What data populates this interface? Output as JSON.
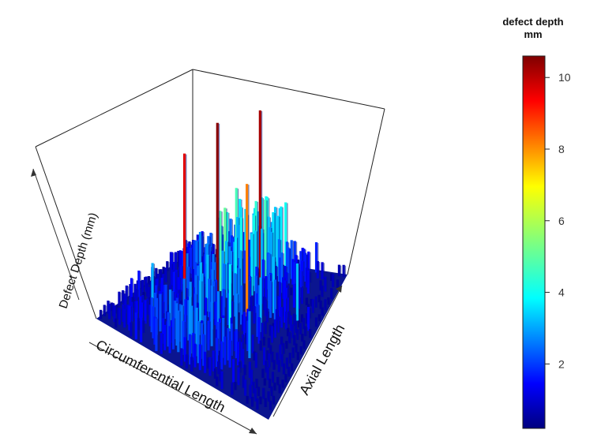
{
  "chart_data": {
    "type": "heatmap",
    "style": "3d-bars",
    "xlabel": "Circumferential Length",
    "ylabel": "Axial Length",
    "zlabel": "Defect Depth (mm)",
    "colorbar": {
      "title_line1": "defect depth",
      "title_line2": "mm",
      "range": [
        0.2,
        10.6
      ],
      "ticks": [
        2,
        4,
        6,
        8,
        10
      ],
      "colormap": "jet",
      "placement": "right"
    },
    "grid": false,
    "z_range": [
      0,
      10.6
    ],
    "notable_points": [
      {
        "label": "peak",
        "depth": 10.5
      },
      {
        "label": "peak",
        "depth": 10.2
      },
      {
        "label": "peak",
        "depth": 9.6
      },
      {
        "label": "peak",
        "depth": 8.0
      }
    ]
  }
}
